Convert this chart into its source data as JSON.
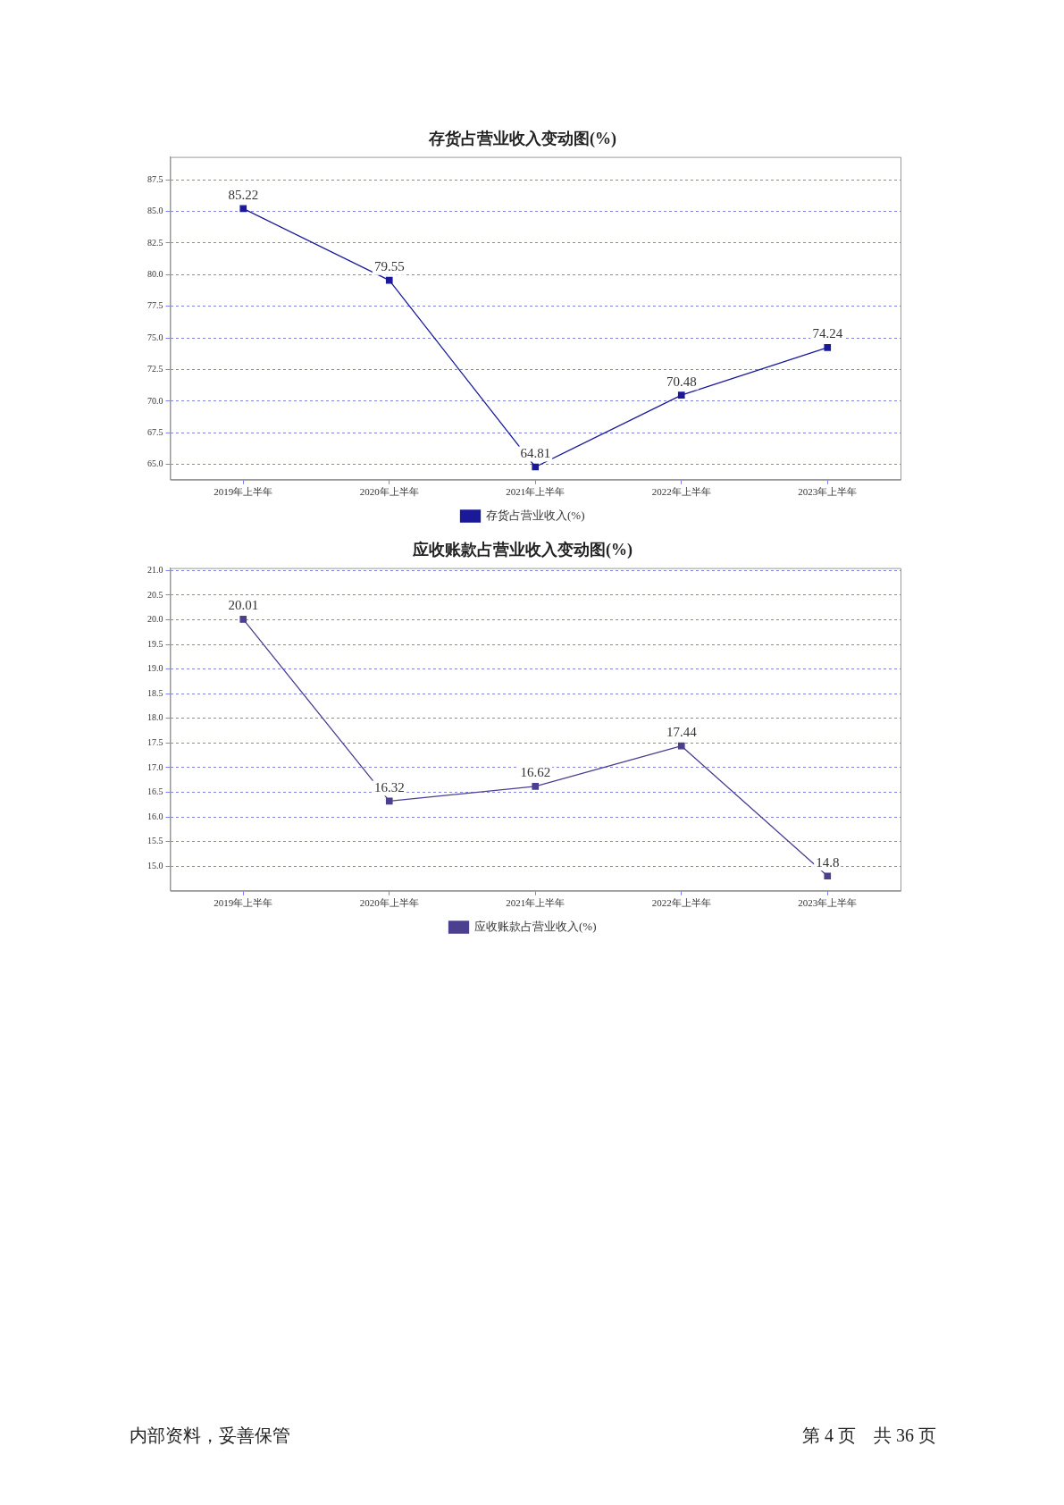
{
  "chart_data": [
    {
      "type": "line",
      "title": "存货占营业收入变动图(%)",
      "categories": [
        "2019年上半年",
        "2020年上半年",
        "2021年上半年",
        "2022年上半年",
        "2023年上半年"
      ],
      "series": [
        {
          "name": "存货占营业收入(%)",
          "color": "#1a1a99",
          "values": [
            85.22,
            79.55,
            64.81,
            70.48,
            74.24
          ]
        }
      ],
      "ylim": [
        63.8,
        89.3
      ],
      "yticks": [
        {
          "value": 65,
          "label": "65.0"
        },
        {
          "value": 67.5,
          "label": "67.5"
        },
        {
          "value": 70,
          "label": "70.0"
        },
        {
          "value": 72.5,
          "label": "72.5"
        },
        {
          "value": 75,
          "label": "75.0"
        },
        {
          "value": 77.5,
          "label": "77.5"
        },
        {
          "value": 80,
          "label": "80.0"
        },
        {
          "value": 82.5,
          "label": "82.5"
        },
        {
          "value": 85,
          "label": "85.0"
        },
        {
          "value": 87.5,
          "label": "87.5"
        }
      ],
      "grid": "y",
      "legend": "bottom",
      "marker": "square",
      "line_style": "solid",
      "data_labels": true
    },
    {
      "type": "line",
      "title": "应收账款占营业收入变动图(%)",
      "categories": [
        "2019年上半年",
        "2020年上半年",
        "2021年上半年",
        "2022年上半年",
        "2023年上半年"
      ],
      "series": [
        {
          "name": "应收账款占营业收入(%)",
          "color": "#4b3f8f",
          "values": [
            20.01,
            16.32,
            16.62,
            17.44,
            14.8
          ]
        }
      ],
      "ylim": [
        14.5,
        21.05
      ],
      "yticks": [
        {
          "value": 15,
          "label": "15.0"
        },
        {
          "value": 15.5,
          "label": "15.5"
        },
        {
          "value": 16,
          "label": "16.0"
        },
        {
          "value": 16.5,
          "label": "16.5"
        },
        {
          "value": 17,
          "label": "17.0"
        },
        {
          "value": 17.5,
          "label": "17.5"
        },
        {
          "value": 18,
          "label": "18.0"
        },
        {
          "value": 18.5,
          "label": "18.5"
        },
        {
          "value": 19,
          "label": "19.0"
        },
        {
          "value": 19.5,
          "label": "19.5"
        },
        {
          "value": 20,
          "label": "20.0"
        },
        {
          "value": 20.5,
          "label": "20.5"
        },
        {
          "value": 21,
          "label": "21.0"
        }
      ],
      "grid": "y",
      "legend": "bottom",
      "marker": "square",
      "line_style": "solid",
      "data_labels": true,
      "annotations": [
        "内部资料，妥善保管",
        "第 4 页　共 36 页"
      ]
    }
  ]
}
